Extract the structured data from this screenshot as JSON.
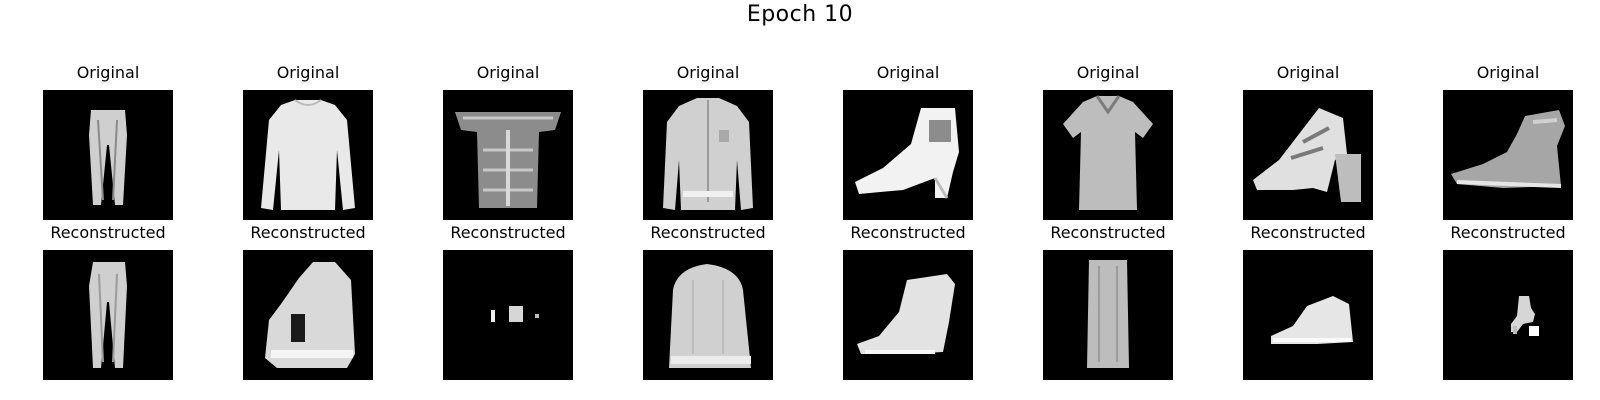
{
  "figure": {
    "title": "Epoch 10",
    "original_label": "Original",
    "reconstructed_label": "Reconstructed"
  },
  "rows": [
    {
      "name": "original",
      "items": [
        "trousers",
        "long-sleeve pullover",
        "off-shoulder top",
        "zip jacket",
        "heeled ankle boot",
        "t-shirt",
        "heeled sandal",
        "ankle boot"
      ]
    },
    {
      "name": "reconstructed",
      "items": [
        "trousers",
        "pullover blob",
        "small speck",
        "coat blob",
        "ankle boot",
        "narrow column",
        "shoe blob",
        "small sparse blob"
      ]
    }
  ],
  "colors": {
    "background": "#ffffff",
    "panel": "#000000",
    "ink": "#000000"
  }
}
